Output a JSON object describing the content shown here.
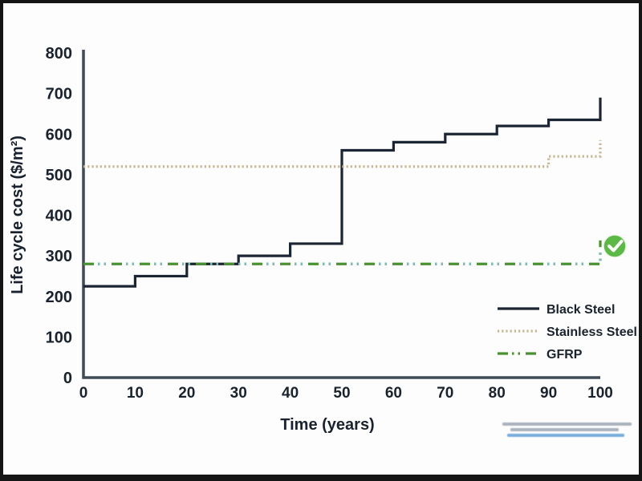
{
  "chart_data": {
    "type": "line",
    "subtype": "step",
    "title": "",
    "xlabel": "Time (years)",
    "ylabel": "Life cycle cost ($/m²)",
    "xlim": [
      0,
      100
    ],
    "ylim": [
      0,
      800
    ],
    "xticks": [
      0,
      10,
      20,
      30,
      40,
      50,
      60,
      70,
      80,
      90,
      100
    ],
    "yticks": [
      0,
      100,
      200,
      300,
      400,
      500,
      600,
      700,
      800
    ],
    "grid": false,
    "legend_position": "lower-right-inside",
    "series": [
      {
        "name": "Black Steel",
        "color": "#1b2533",
        "style": "solid",
        "step_points": [
          [
            0,
            225
          ],
          [
            10,
            250
          ],
          [
            20,
            280
          ],
          [
            30,
            300
          ],
          [
            40,
            330
          ],
          [
            50,
            560
          ],
          [
            60,
            580
          ],
          [
            70,
            600
          ],
          [
            80,
            620
          ],
          [
            90,
            635
          ],
          [
            100,
            690
          ]
        ]
      },
      {
        "name": "Stainless Steel",
        "color": "#c9b693",
        "style": "dotted",
        "step_points": [
          [
            0,
            520
          ],
          [
            90,
            545
          ],
          [
            100,
            585
          ]
        ]
      },
      {
        "name": "GFRP",
        "color": "#48922f",
        "accent_dot_color": "#7cbcb4",
        "style": "dash-dot-dot",
        "step_points": [
          [
            0,
            280
          ],
          [
            100,
            338
          ]
        ]
      }
    ],
    "annotations": [
      {
        "type": "icon",
        "name": "check-circle-icon",
        "color": "#5cb946",
        "near": "GFRP line, right edge"
      }
    ]
  },
  "colors": {
    "axis": "#3f4b57",
    "tick_text": "#19222e",
    "frame_border": "#151515",
    "fine_print_text": "#aab3bd",
    "fine_print_link": "#78aede"
  },
  "footnote": {
    "legible": false,
    "lines": 3
  }
}
